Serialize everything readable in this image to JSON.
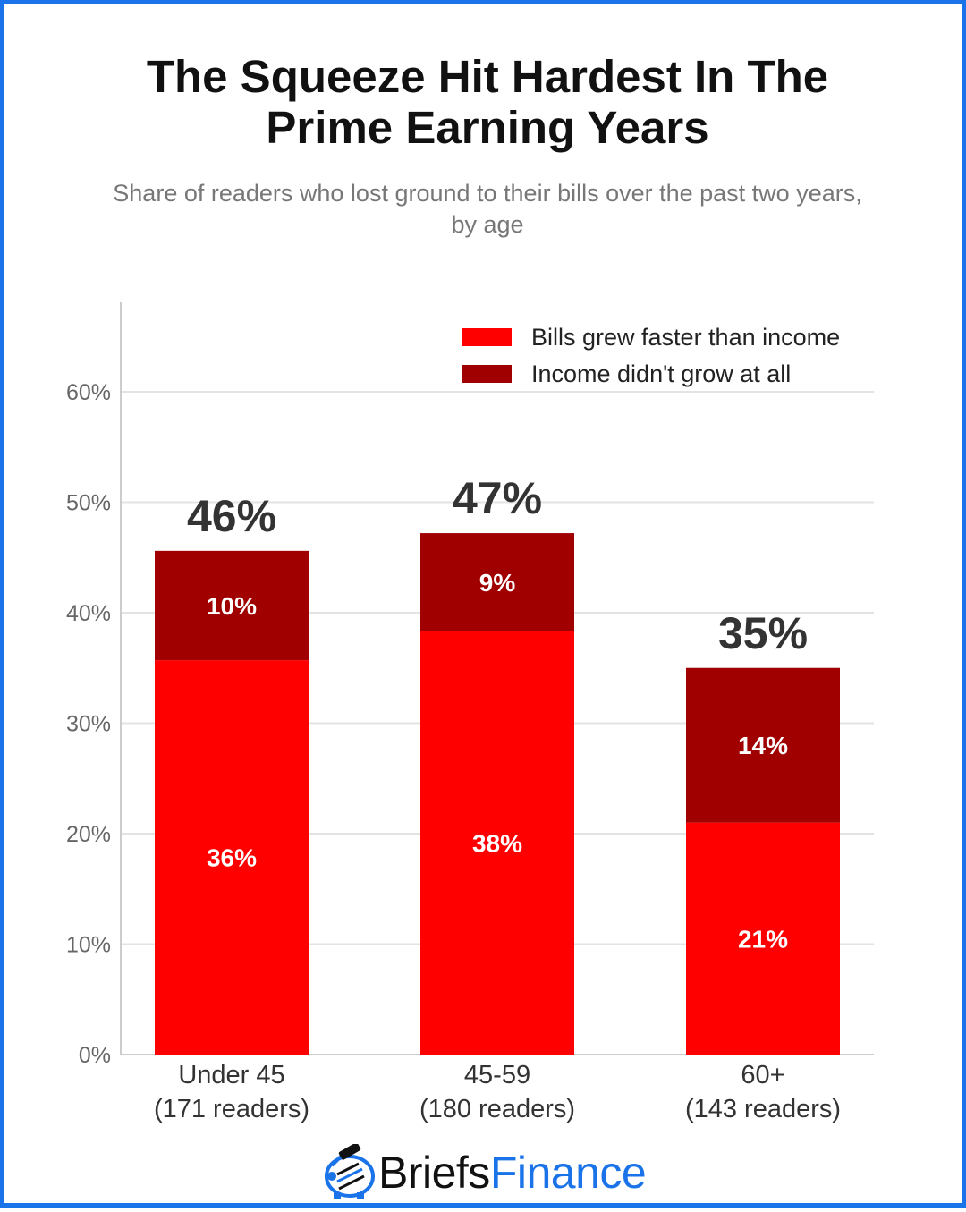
{
  "header": {
    "title": "The Squeeze Hit Hardest In The Prime Earning Years",
    "subtitle": "Share of readers who lost ground to their bills over the past two years, by age"
  },
  "brand": {
    "name_part1": "Briefs",
    "name_part2": "Finance",
    "icon": "piggy-bank-icon",
    "color_dark": "#111111",
    "color_accent": "#1a73e8"
  },
  "chart_data": {
    "type": "bar",
    "stacked": true,
    "categories": [
      "Under 45\n(171 readers)",
      "45-59\n(180 readers)",
      "60+\n(143 readers)"
    ],
    "series": [
      {
        "name": "Bills grew faster than income",
        "color": "#ff0000",
        "values": [
          35.7,
          38.3,
          21.0
        ],
        "labels": [
          "36%",
          "38%",
          "21%"
        ]
      },
      {
        "name": "Income didn't grow at all",
        "color": "#a00000",
        "values": [
          9.9,
          8.9,
          14.0
        ],
        "labels": [
          "10%",
          "9%",
          "14%"
        ]
      }
    ],
    "totals": [
      "46%",
      "47%",
      "35%"
    ],
    "ylim": [
      0,
      60
    ],
    "yticks": [
      0,
      10,
      20,
      30,
      40,
      50,
      60
    ],
    "ytick_labels": [
      "0%",
      "10%",
      "20%",
      "30%",
      "40%",
      "50%",
      "60%"
    ],
    "grid": true,
    "legend": "top-right"
  }
}
